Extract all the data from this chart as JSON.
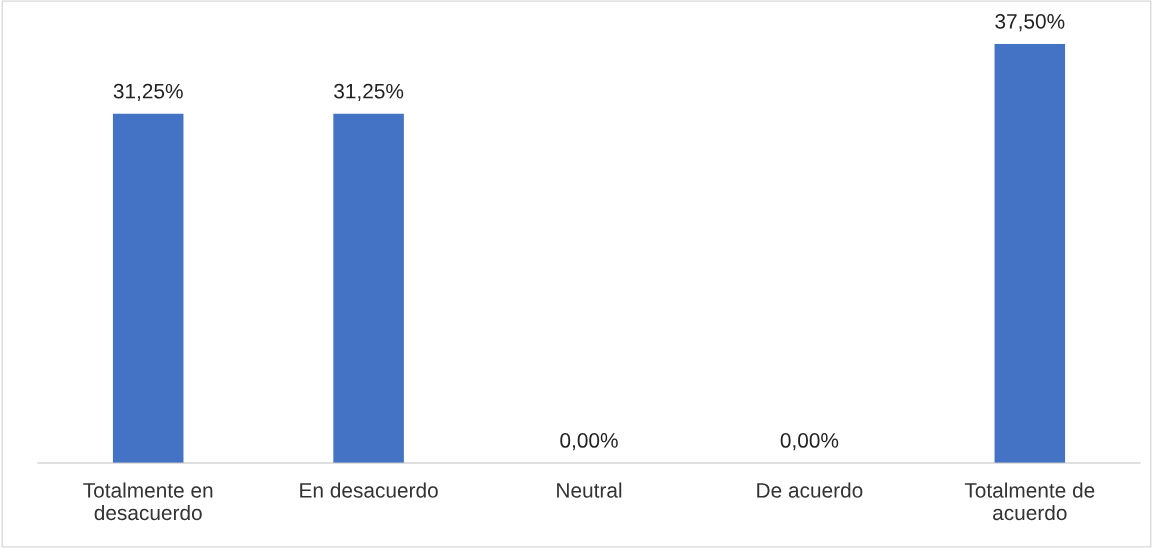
{
  "chart_data": {
    "type": "bar",
    "categories": [
      "Totalmente en\ndesacuerdo",
      "En desacuerdo",
      "Neutral",
      "De acuerdo",
      "Totalmente de\nacuerdo"
    ],
    "values": [
      31.25,
      31.25,
      0,
      0,
      37.5
    ],
    "value_labels": [
      "31,25%",
      "31,25%",
      "0,00%",
      "0,00%",
      "37,50%"
    ],
    "color": "#4472c4",
    "grid": false,
    "legend": false
  }
}
